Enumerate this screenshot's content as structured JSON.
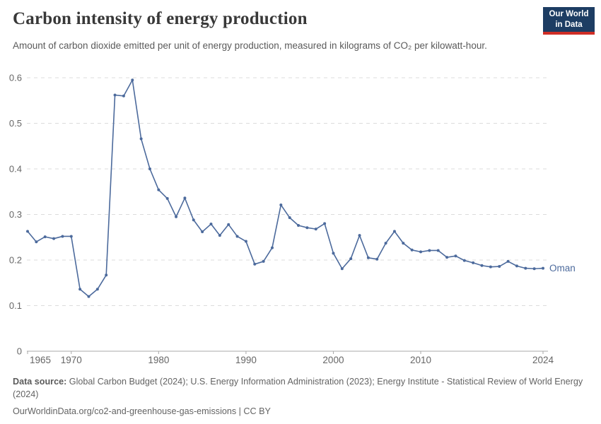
{
  "header": {
    "title": "Carbon intensity of energy production",
    "subtitle": "Amount of carbon dioxide emitted per unit of energy production, measured in kilograms of CO₂ per kilowatt-hour.",
    "logo": {
      "line1": "Our World",
      "line2": "in Data",
      "bg_color": "#1d3d63",
      "accent_color": "#cf2e26"
    }
  },
  "chart_data": {
    "type": "line",
    "title": "Carbon intensity of energy production",
    "xlabel": "",
    "ylabel": "",
    "ylim": [
      0,
      0.6
    ],
    "yticks": [
      0,
      0.1,
      0.2,
      0.3,
      0.4,
      0.5,
      0.6
    ],
    "xticks": [
      1965,
      1970,
      1980,
      1990,
      2000,
      2010,
      2024
    ],
    "grid": "horizontal-dashed",
    "legend_position": "end-of-line-label",
    "grid_color": "#dcdcdc",
    "axis_color": "#a9a9a9",
    "tick_label_color": "#666666",
    "series": [
      {
        "name": "Oman",
        "color": "#4c6a9c",
        "x": [
          1965,
          1966,
          1967,
          1968,
          1969,
          1970,
          1971,
          1972,
          1973,
          1974,
          1975,
          1976,
          1977,
          1978,
          1979,
          1980,
          1981,
          1982,
          1983,
          1984,
          1985,
          1986,
          1987,
          1988,
          1989,
          1990,
          1991,
          1992,
          1993,
          1994,
          1995,
          1996,
          1997,
          1998,
          1999,
          2000,
          2001,
          2002,
          2003,
          2004,
          2005,
          2006,
          2007,
          2008,
          2009,
          2010,
          2011,
          2012,
          2013,
          2014,
          2015,
          2016,
          2017,
          2018,
          2019,
          2020,
          2021,
          2022,
          2023,
          2024
        ],
        "values": [
          0.263,
          0.24,
          0.251,
          0.247,
          0.252,
          0.252,
          0.136,
          0.12,
          0.136,
          0.167,
          0.562,
          0.56,
          0.595,
          0.466,
          0.4,
          0.354,
          0.335,
          0.295,
          0.336,
          0.288,
          0.262,
          0.279,
          0.254,
          0.278,
          0.252,
          0.241,
          0.191,
          0.197,
          0.227,
          0.321,
          0.293,
          0.276,
          0.271,
          0.268,
          0.28,
          0.215,
          0.181,
          0.203,
          0.254,
          0.205,
          0.202,
          0.237,
          0.263,
          0.237,
          0.222,
          0.218,
          0.221,
          0.221,
          0.206,
          0.209,
          0.199,
          0.194,
          0.188,
          0.185,
          0.186,
          0.197,
          0.187,
          0.182,
          0.181,
          0.182
        ]
      }
    ]
  },
  "footer": {
    "source_label": "Data source:",
    "source_text": "Global Carbon Budget (2024); U.S. Energy Information Administration (2023); Energy Institute - Statistical Review of World Energy (2024)",
    "note": "OurWorldinData.org/co2-and-greenhouse-gas-emissions | CC BY"
  }
}
